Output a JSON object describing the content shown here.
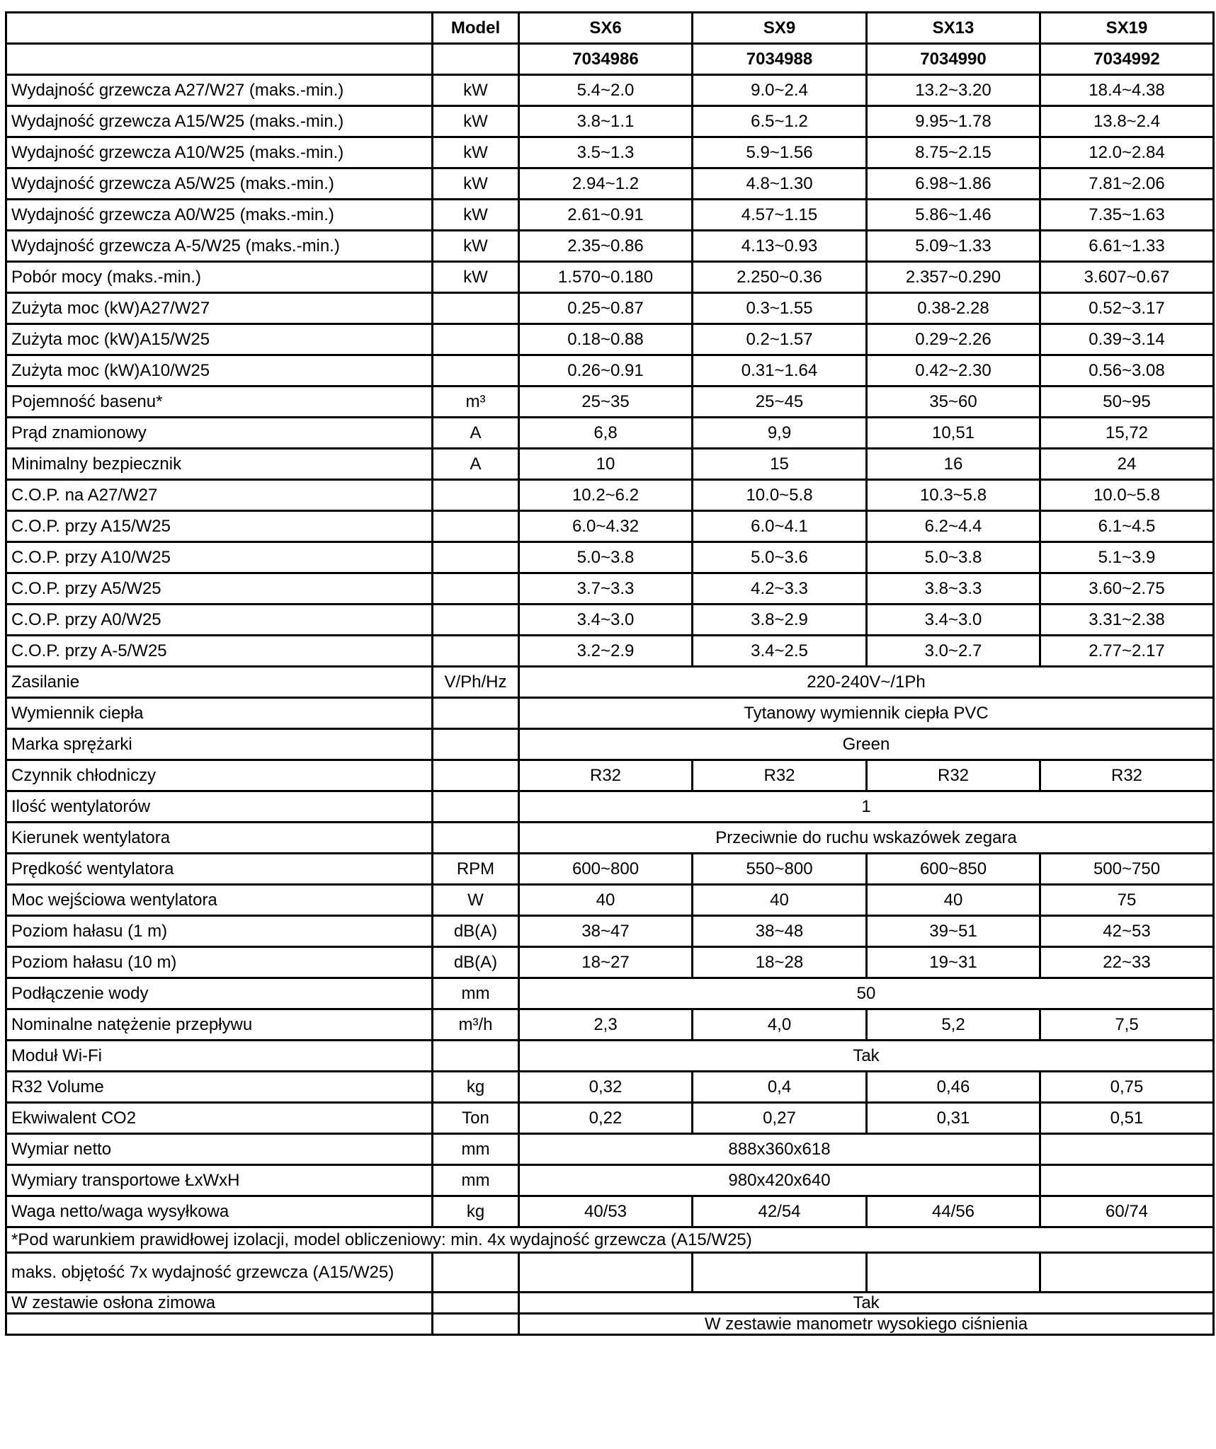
{
  "header": {
    "model_label": "Model",
    "models": [
      "SX6",
      "SX9",
      "SX13",
      "SX19"
    ],
    "codes": [
      "7034986",
      "7034988",
      "7034990",
      "7034992"
    ]
  },
  "rows": [
    {
      "label": "Wydajność grzewcza A27/W27 (maks.-min.)",
      "unit": "kW",
      "values": [
        "5.4~2.0",
        "9.0~2.4",
        "13.2~3.20",
        "18.4~4.38"
      ]
    },
    {
      "label": "Wydajność grzewcza A15/W25 (maks.-min.)",
      "unit": "kW",
      "values": [
        "3.8~1.1",
        "6.5~1.2",
        "9.95~1.78",
        "13.8~2.4"
      ]
    },
    {
      "label": "Wydajność grzewcza A10/W25 (maks.-min.)",
      "unit": "kW",
      "values": [
        "3.5~1.3",
        "5.9~1.56",
        "8.75~2.15",
        "12.0~2.84"
      ]
    },
    {
      "label": "Wydajność grzewcza A5/W25 (maks.-min.)",
      "unit": "kW",
      "values": [
        "2.94~1.2",
        "4.8~1.30",
        "6.98~1.86",
        "7.81~2.06"
      ]
    },
    {
      "label": "Wydajność grzewcza A0/W25 (maks.-min.)",
      "unit": "kW",
      "values": [
        "2.61~0.91",
        "4.57~1.15",
        "5.86~1.46",
        "7.35~1.63"
      ]
    },
    {
      "label": "Wydajność grzewcza A-5/W25 (maks.-min.)",
      "unit": "kW",
      "values": [
        "2.35~0.86",
        "4.13~0.93",
        "5.09~1.33",
        "6.61~1.33"
      ]
    },
    {
      "label": "Pobór mocy (maks.-min.)",
      "unit": "kW",
      "values": [
        "1.570~0.180",
        "2.250~0.36",
        "2.357~0.290",
        "3.607~0.67"
      ]
    },
    {
      "label": "Zużyta moc (kW)A27/W27",
      "unit": "",
      "values": [
        "0.25~0.87",
        "0.3~1.55",
        "0.38-2.28",
        "0.52~3.17"
      ]
    },
    {
      "label": "Zużyta moc (kW)A15/W25",
      "unit": "",
      "values": [
        "0.18~0.88",
        "0.2~1.57",
        "0.29~2.26",
        "0.39~3.14"
      ]
    },
    {
      "label": "Zużyta moc (kW)A10/W25",
      "unit": "",
      "values": [
        "0.26~0.91",
        "0.31~1.64",
        "0.42~2.30",
        "0.56~3.08"
      ]
    },
    {
      "label": "Pojemność basenu*",
      "unit": "m³",
      "values": [
        "25~35",
        "25~45",
        "35~60",
        "50~95"
      ]
    },
    {
      "label": "Prąd znamionowy",
      "unit": "A",
      "values": [
        "6,8",
        "9,9",
        "10,51",
        "15,72"
      ]
    },
    {
      "label": "Minimalny bezpiecznik",
      "unit": "A",
      "values": [
        "10",
        "15",
        "16",
        "24"
      ]
    },
    {
      "label": "C.O.P. na A27/W27",
      "unit": "",
      "values": [
        "10.2~6.2",
        "10.0~5.8",
        "10.3~5.8",
        "10.0~5.8"
      ]
    },
    {
      "label": "C.O.P. przy A15/W25",
      "unit": "",
      "values": [
        "6.0~4.32",
        "6.0~4.1",
        "6.2~4.4",
        "6.1~4.5"
      ]
    },
    {
      "label": "C.O.P. przy A10/W25",
      "unit": "",
      "values": [
        "5.0~3.8",
        "5.0~3.6",
        "5.0~3.8",
        "5.1~3.9"
      ]
    },
    {
      "label": "C.O.P. przy A5/W25",
      "unit": "",
      "values": [
        "3.7~3.3",
        "4.2~3.3",
        "3.8~3.3",
        "3.60~2.75"
      ]
    },
    {
      "label": "C.O.P. przy A0/W25",
      "unit": "",
      "values": [
        "3.4~3.0",
        "3.8~2.9",
        "3.4~3.0",
        "3.31~2.38"
      ]
    },
    {
      "label": "C.O.P. przy A-5/W25",
      "unit": "",
      "values": [
        "3.2~2.9",
        "3.4~2.5",
        "3.0~2.7",
        "2.77~2.17"
      ]
    },
    {
      "label": "Zasilanie",
      "unit": "V/Ph/Hz",
      "values": [
        "220-240V~/1Ph"
      ]
    },
    {
      "label": "Wymiennik ciepła",
      "unit": "",
      "values": [
        "Tytanowy wymiennik ciepła PVC"
      ]
    },
    {
      "label": "Marka sprężarki",
      "unit": "",
      "values": [
        "Green"
      ]
    },
    {
      "label": "Czynnik chłodniczy",
      "unit": "",
      "values": [
        "R32",
        "R32",
        "R32",
        "R32"
      ]
    },
    {
      "label": "Ilość wentylatorów",
      "unit": "",
      "values": [
        "1"
      ]
    },
    {
      "label": "Kierunek wentylatora",
      "unit": "",
      "values": [
        "Przeciwnie do ruchu wskazówek zegara"
      ]
    },
    {
      "label": "Prędkość wentylatora",
      "unit": "RPM",
      "values": [
        "600~800",
        "550~800",
        "600~850",
        "500~750"
      ]
    },
    {
      "label": "Moc wejściowa wentylatora",
      "unit": "W",
      "values": [
        "40",
        "40",
        "40",
        "75"
      ]
    },
    {
      "label": "Poziom hałasu (1 m)",
      "unit": "dB(A)",
      "values": [
        "38~47",
        "38~48",
        "39~51",
        "42~53"
      ]
    },
    {
      "label": "Poziom hałasu (10 m)",
      "unit": "dB(A)",
      "values": [
        "18~27",
        "18~28",
        "19~31",
        "22~33"
      ]
    },
    {
      "label": "Podłączenie wody",
      "unit": "mm",
      "values": [
        "50"
      ]
    },
    {
      "label": "Nominalne natężenie przepływu",
      "unit": "m³/h",
      "values": [
        "2,3",
        "4,0",
        "5,2",
        "7,5"
      ]
    },
    {
      "label": "Moduł Wi-Fi",
      "unit": "",
      "values": [
        "Tak"
      ]
    },
    {
      "label": "R32 Volume",
      "unit": "kg",
      "values": [
        "0,32",
        "0,4",
        "0,46",
        "0,75"
      ]
    },
    {
      "label": "Ekwiwalent CO2",
      "unit": "Ton",
      "values": [
        "0,22",
        "0,27",
        "0,31",
        "0,51"
      ]
    },
    {
      "label": "Wymiar netto",
      "unit": "mm",
      "values": [
        "888x360x618",
        ""
      ]
    },
    {
      "label": "Wymiary transportowe ŁxWxH",
      "unit": "mm",
      "values": [
        "980x420x640",
        ""
      ]
    },
    {
      "label": "Waga netto/waga wysyłkowa",
      "unit": "kg",
      "values": [
        "40/53",
        "42/54",
        "44/56",
        "60/74"
      ]
    }
  ],
  "footnote": "*Pod warunkiem prawidłowej izolacji, model obliczeniowy: min. 4x wydajność grzewcza (A15/W25)",
  "extra_rows": [
    {
      "label": "maks. objętość 7x wydajność grzewcza (A15/W25)",
      "unit": "",
      "values": [
        "",
        "",
        "",
        ""
      ]
    },
    {
      "label": "W zestawie osłona zimowa",
      "unit": "",
      "values": [
        "Tak"
      ]
    },
    {
      "label": "",
      "unit": "",
      "values": [
        "W zestawie manometr wysokiego ciśnienia"
      ]
    }
  ]
}
